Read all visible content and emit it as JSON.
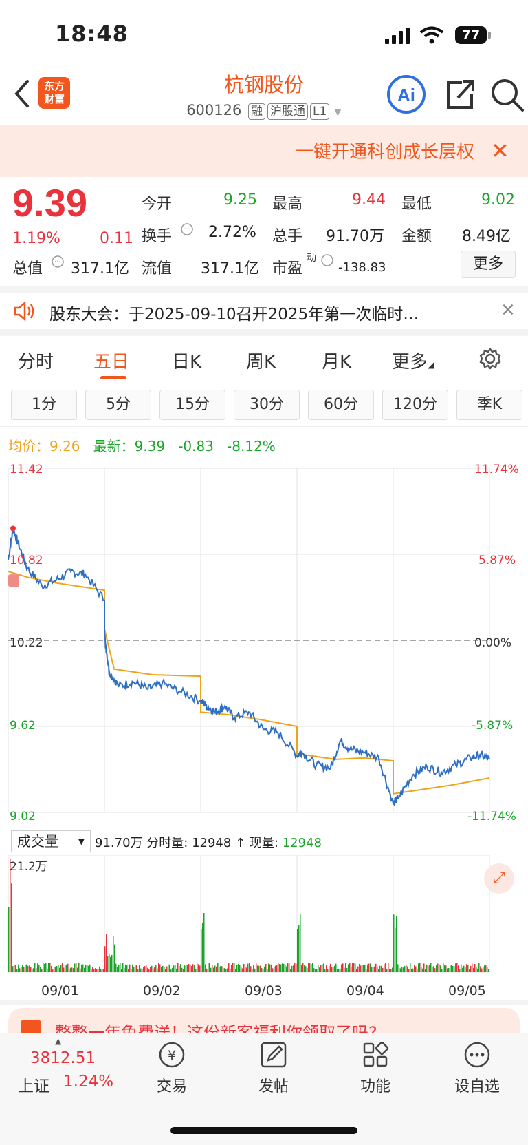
{
  "status": {
    "time": "18:48",
    "battery": "77"
  },
  "header": {
    "logo_line1": "东方",
    "logo_line2": "财富",
    "name": "杭钢股份",
    "code": "600126",
    "tags": [
      "融",
      "沪股通",
      "L1"
    ],
    "ai_label": "Ai"
  },
  "promo": {
    "text": "一键开通科创成长层权",
    "close": "✕"
  },
  "quote": {
    "price": "9.39",
    "change_pct": "1.19%",
    "change_abs": "0.11",
    "open_label": "今开",
    "open": "9.25",
    "high_label": "最高",
    "high": "9.44",
    "low_label": "最低",
    "low": "9.02",
    "turnover_label": "换手",
    "turnover": "2.72%",
    "volume_label": "总手",
    "volume": "91.70万",
    "amount_label": "金额",
    "amount": "8.49亿",
    "mktcap_label": "总值",
    "mktcap": "317.1亿",
    "float_label": "流值",
    "float": "317.1亿",
    "pe_label": "市盈",
    "pe_sup": "动",
    "pe": "-138.83",
    "more": "更多"
  },
  "notice": {
    "text": "股东大会：于2025-09-10召开2025年第一次临时…",
    "close": "✕"
  },
  "tabs": [
    "分时",
    "五日",
    "日K",
    "周K",
    "月K",
    "更多"
  ],
  "active_tab": "五日",
  "periods": [
    "1分",
    "5分",
    "15分",
    "30分",
    "60分",
    "120分",
    "季K"
  ],
  "legend": {
    "avg_label": "均价：",
    "avg": "9.26",
    "latest_label": "最新：",
    "latest": "9.39",
    "chg": "-0.83",
    "chg_pct": "-8.12%"
  },
  "volume_bar": {
    "select": "成交量",
    "total": "91.70万",
    "tick_label": "分时量:",
    "tick": "12948",
    "arrow": "↑",
    "now_label": "现量:",
    "now": "12948",
    "ymax": "21.2万"
  },
  "ad": {
    "text": "整整一年免费送！这份新客福利你领取了吗?"
  },
  "bottom_nav": {
    "index_value": "3812.51",
    "index_name": "上证",
    "index_pct": "1.24%",
    "items": [
      "交易",
      "发帖",
      "功能",
      "设自选"
    ]
  },
  "colors": {
    "accent": "#f2561c",
    "up": "#e8323c",
    "down": "#1aa52a",
    "price_line": "#2f6fc2",
    "avg_line": "#f0a319"
  },
  "chart_data": {
    "type": "line",
    "x_labels": [
      "09/01",
      "09/02",
      "09/03",
      "09/04",
      "09/05"
    ],
    "y_left_ticks": [
      "11.42",
      "10.82",
      "10.22",
      "9.62",
      "9.02"
    ],
    "y_right_ticks": [
      "11.74%",
      "5.87%",
      "0.00%",
      "-5.87%",
      "-11.74%"
    ],
    "ylim": [
      9.02,
      11.42
    ],
    "prev_close": 10.22,
    "series": [
      {
        "name": "最新",
        "values": [
          [
            0.0,
            10.78
          ],
          [
            0.05,
            11.0
          ],
          [
            0.1,
            10.9
          ],
          [
            0.2,
            10.72
          ],
          [
            0.35,
            10.6
          ],
          [
            0.5,
            10.64
          ],
          [
            0.65,
            10.7
          ],
          [
            0.8,
            10.68
          ],
          [
            1.0,
            10.5
          ],
          [
            1.0,
            10.25
          ],
          [
            1.05,
            10.0
          ],
          [
            1.15,
            9.9
          ],
          [
            1.3,
            9.93
          ],
          [
            1.45,
            9.88
          ],
          [
            1.6,
            9.92
          ],
          [
            1.8,
            9.86
          ],
          [
            2.0,
            9.8
          ],
          [
            2.05,
            9.77
          ],
          [
            2.15,
            9.72
          ],
          [
            2.25,
            9.76
          ],
          [
            2.35,
            9.68
          ],
          [
            2.5,
            9.72
          ],
          [
            2.65,
            9.6
          ],
          [
            2.8,
            9.58
          ],
          [
            3.0,
            9.42
          ],
          [
            3.05,
            9.44
          ],
          [
            3.2,
            9.35
          ],
          [
            3.35,
            9.33
          ],
          [
            3.45,
            9.52
          ],
          [
            3.55,
            9.46
          ],
          [
            3.7,
            9.44
          ],
          [
            3.85,
            9.4
          ],
          [
            4.0,
            9.08
          ],
          [
            4.05,
            9.12
          ],
          [
            4.2,
            9.28
          ],
          [
            4.35,
            9.34
          ],
          [
            4.5,
            9.3
          ],
          [
            4.65,
            9.35
          ],
          [
            4.8,
            9.4
          ],
          [
            4.9,
            9.42
          ],
          [
            5.0,
            9.39
          ]
        ]
      },
      {
        "name": "均价",
        "values": [
          [
            0.0,
            10.7
          ],
          [
            0.2,
            10.66
          ],
          [
            0.5,
            10.62
          ],
          [
            1.0,
            10.57
          ],
          [
            1.0,
            10.3
          ],
          [
            1.1,
            10.02
          ],
          [
            1.5,
            9.98
          ],
          [
            2.0,
            9.97
          ],
          [
            2.0,
            9.72
          ],
          [
            2.3,
            9.7
          ],
          [
            2.6,
            9.67
          ],
          [
            3.0,
            9.62
          ],
          [
            3.0,
            9.43
          ],
          [
            3.4,
            9.39
          ],
          [
            3.7,
            9.4
          ],
          [
            4.0,
            9.38
          ],
          [
            4.0,
            9.15
          ],
          [
            4.2,
            9.17
          ],
          [
            4.6,
            9.21
          ],
          [
            5.0,
            9.26
          ]
        ]
      }
    ]
  }
}
